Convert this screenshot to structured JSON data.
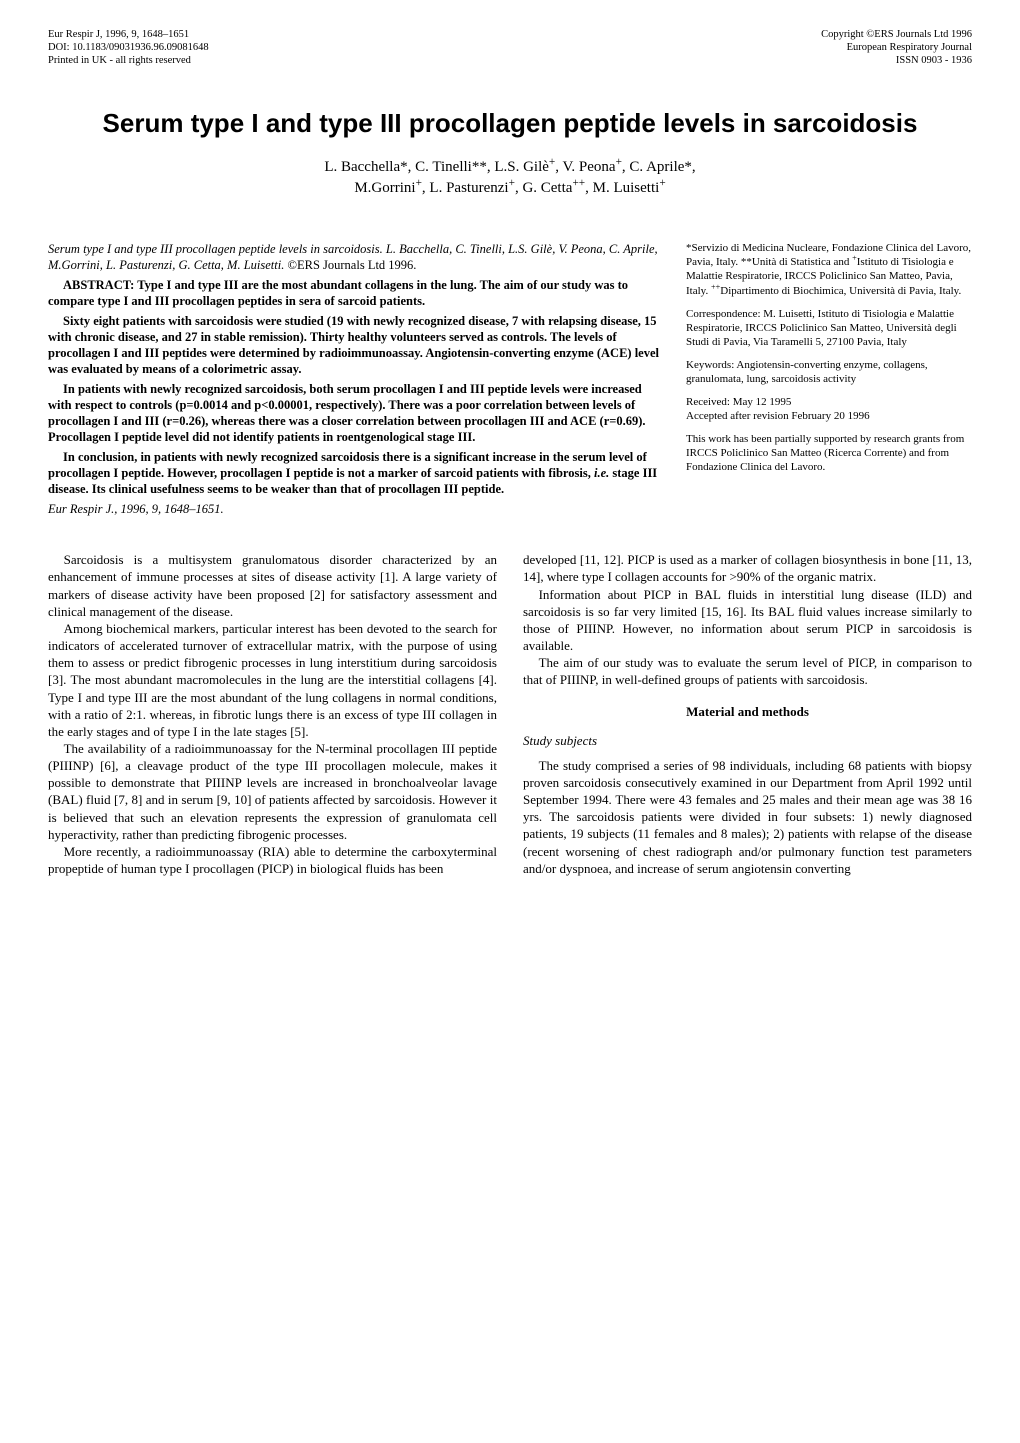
{
  "header": {
    "left": "Eur Respir J, 1996, 9, 1648–1651\nDOI: 10.1183/09031936.96.09081648\nPrinted in UK - all rights reserved",
    "right": "Copyright ©ERS Journals Ltd 1996\nEuropean Respiratory Journal\nISSN 0903 - 1936"
  },
  "title": "Serum type I and type III procollagen peptide levels in sarcoidosis",
  "authors_html": "L. Bacchella*, C. Tinelli**, L.S. Gilè<sup>+</sup>, V. Peona<sup>+</sup>, C. Aprile*,<br>M.Gorrini<sup>+</sup>, L. Pasturenzi<sup>+</sup>, G. Cetta<sup>++</sup>, M. Luisetti<sup>+</sup>",
  "abstract": {
    "citation_title": "Serum type I and type III procollagen peptide levels in sarcoidosis.",
    "citation_authors": "L. Bacchella, C. Tinelli, L.S. Gilè, V. Peona, C. Aprile, M.Gorrini, L. Pasturenzi, G. Cetta, M. Luisetti.",
    "copyright": "©ERS Journals Ltd 1996.",
    "p1": "ABSTRACT:  Type I and type III are the most abundant collagens in the lung. The aim of our study was to compare type I and III procollagen peptides in sera of sarcoid patients.",
    "p2": "Sixty eight patients with sarcoidosis were studied (19 with newly recognized disease, 7 with relapsing disease, 15 with chronic disease, and 27 in stable remission). Thirty healthy volunteers served as controls. The levels of procollagen I and III peptides were determined by radioimmunoassay. Angiotensin-converting enzyme (ACE) level was evaluated by means of a colorimetric assay.",
    "p3": "In patients with newly recognized sarcoidosis, both serum procollagen I and III peptide levels were increased with respect to controls (p=0.0014 and p<0.00001, respectively). There was a poor correlation between levels of procollagen I and III (r=0.26), whereas there was a closer correlation between procollagen III and ACE (r=0.69). Procollagen I peptide level did not identify patients in roentgenological stage III.",
    "p4_html": "In conclusion, in patients with newly recognized sarcoidosis there is a significant increase in the serum level of procollagen I peptide. However, procollagen I peptide is not a marker of sarcoid patients with fibrosis, <i>i.e.</i> stage III disease. Its clinical usefulness seems to be weaker than that of procollagen III peptide.",
    "ref": "Eur Respir J., 1996, 9, 1648–1651."
  },
  "sidebar": {
    "affil_html": "*Servizio di Medicina Nucleare, Fondazione Clinica del Lavoro, Pavia, Italy. **Unità di Statistica and <sup>+</sup>Istituto di Tisiologia e Malattie Respiratorie, IRCCS Policlinico San Matteo, Pavia, Italy. <sup>++</sup>Dipartimento di Biochimica, Università di Pavia, Italy.",
    "corr": "Correspondence:  M. Luisetti, Istituto di Tisiologia e Malattie Respiratorie, IRCCS Policlinico San Matteo, Università degli Studi di Pavia, Via Taramelli 5, 27100 Pavia, Italy",
    "keywords": "Keywords:  Angiotensin-converting enzyme, collagens, granulomata, lung, sarcoidosis activity",
    "received": "Received:  May 12 1995",
    "accepted": "Accepted after revision February 20 1996",
    "support": "This work has been partially supported by research grants from IRCCS Policlinico San Matteo (Ricerca Corrente) and from Fondazione Clinica del Lavoro."
  },
  "body": {
    "col1": {
      "p1": "Sarcoidosis is a multisystem granulomatous disorder characterized by an enhancement of immune processes at sites of disease activity [1]. A large variety of markers of disease activity have been proposed [2] for satisfactory assessment and clinical management of the disease.",
      "p2": "Among biochemical markers, particular interest has been devoted to the search for indicators of accelerated turnover of extracellular matrix, with the purpose of using them to assess or predict fibrogenic processes in lung interstitium during sarcoidosis [3]. The most abundant macromolecules in the lung are the interstitial collagens [4]. Type I and type III are the most abundant of the lung collagens in normal conditions, with a ratio of 2:1. whereas, in fibrotic lungs there is an excess of type III collagen in the early stages and of type I in the late stages [5].",
      "p3": "The availability of a radioimmunoassay for the N-terminal procollagen III peptide (PIIINP) [6], a cleavage product of the type III procollagen molecule, makes it possible to demonstrate that PIIINP levels are increased in bronchoalveolar lavage (BAL) fluid [7, 8] and in serum [9, 10] of patients affected by sarcoidosis. However it is believed that such an elevation represents the expression of granulomata cell hyperactivity, rather than predicting fibrogenic processes.",
      "p4": "More recently, a radioimmunoassay (RIA) able to determine the carboxyterminal propeptide of human type I procollagen (PICP) in biological fluids has been"
    },
    "col2": {
      "p1": "developed [11, 12]. PICP is used as a marker of collagen biosynthesis in bone [11, 13, 14], where type I collagen accounts for >90% of the organic matrix.",
      "p2": "Information about PICP in BAL fluids in interstitial lung disease (ILD) and sarcoidosis is so far very limited [15, 16]. Its BAL fluid values increase similarly to those of PIIINP. However, no information about serum PICP in sarcoidosis is available.",
      "p3": "The aim of our study was to evaluate the serum level of PICP, in comparison to that of PIIINP, in well-defined groups of patients with sarcoidosis.",
      "sect": "Material and methods",
      "sub": "Study subjects",
      "p4": "The study comprised a series of 98 individuals, including 68 patients with biopsy proven sarcoidosis consecutively examined in our Department from April 1992 until September 1994. There were 43 females and 25 males and their mean age was 38  16 yrs. The sarcoidosis patients were divided in four subsets: 1) newly diagnosed patients, 19 subjects (11 females and 8 males); 2) patients with relapse of the disease (recent worsening of chest radiograph and/or pulmonary function test parameters and/or dyspnoea, and increase of serum angiotensin converting"
    }
  }
}
